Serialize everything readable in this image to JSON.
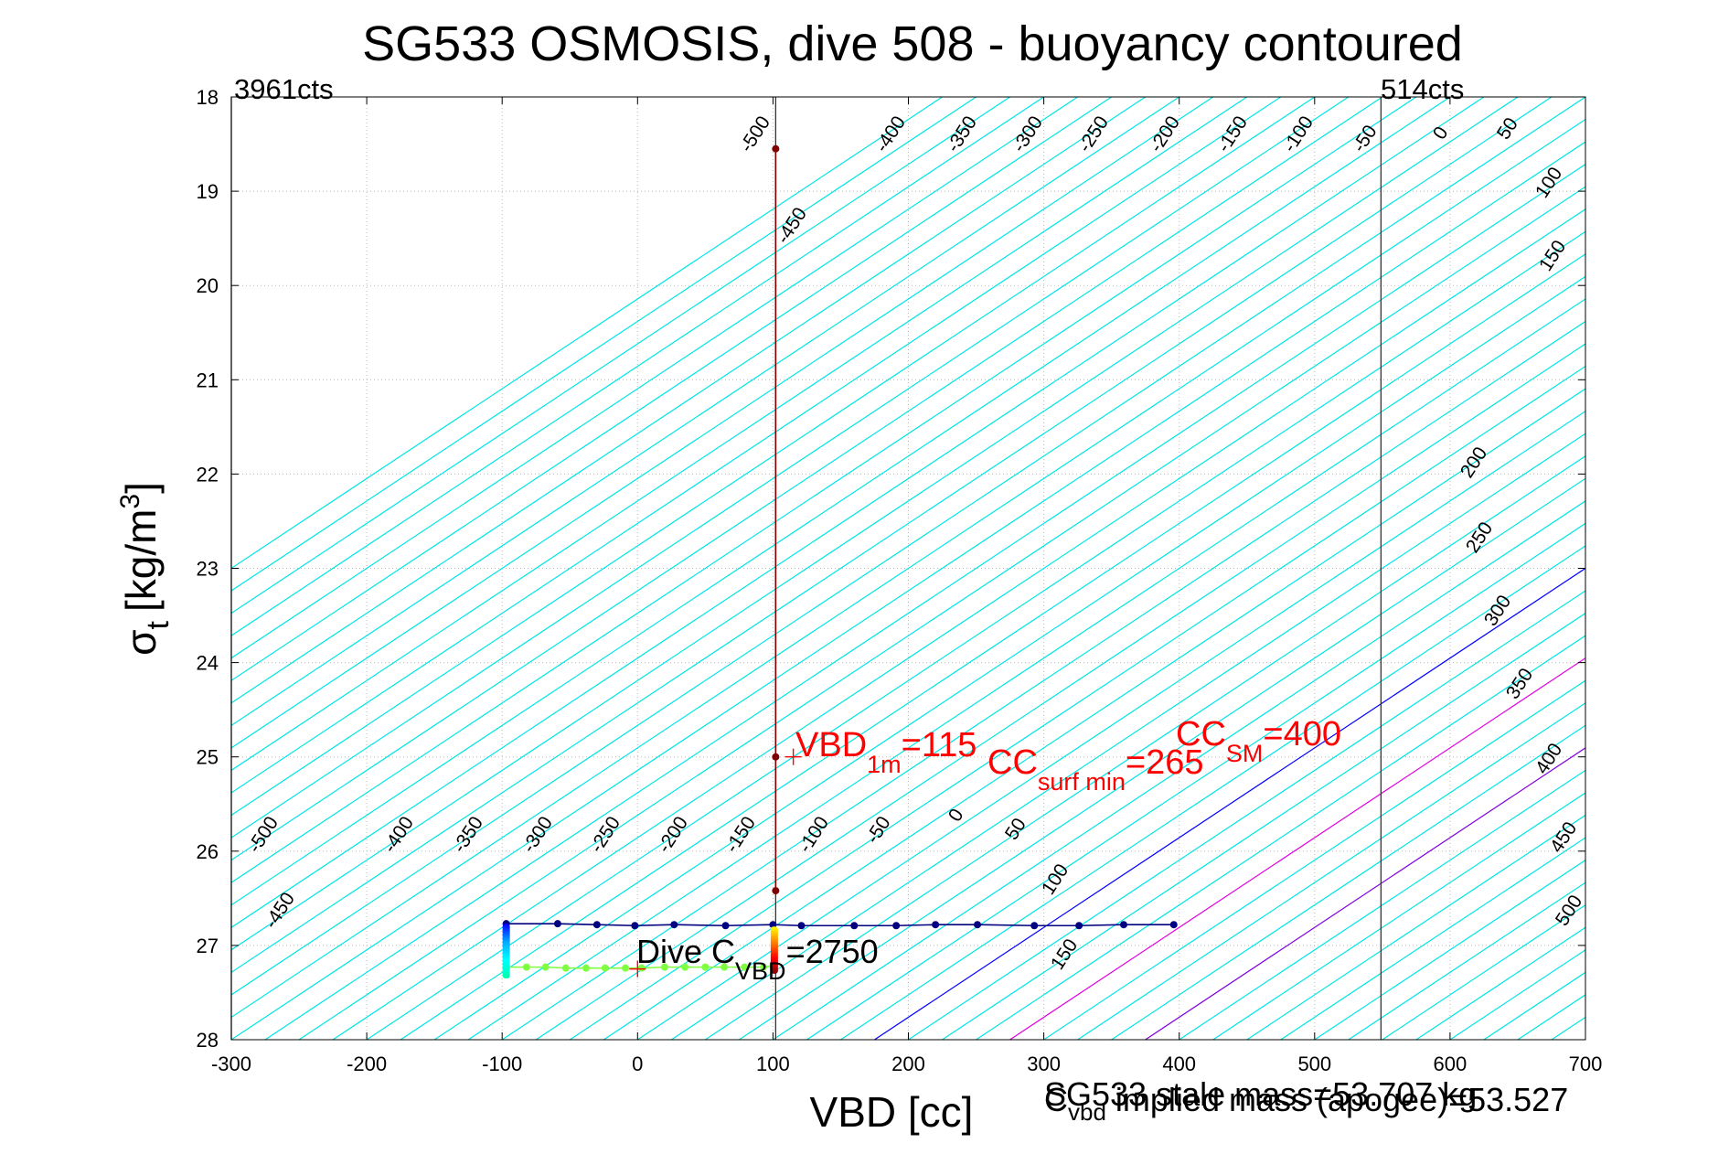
{
  "chart_data": {
    "type": "line",
    "title": "SG533 OSMOSIS, dive 508 - buoyancy contoured",
    "xlabel": "VBD [cc]",
    "ylabel": "σ_t [kg/m³]",
    "ylabel_symbol": "σ",
    "ylabel_sub": "t",
    "ylabel_unit": "[kg/m",
    "ylabel_sup": "3",
    "ylabel_close": "]",
    "xlim": [
      -300,
      700
    ],
    "ylim": [
      18,
      28
    ],
    "y_reversed": true,
    "grid": true,
    "x_ticks": [
      "-300",
      "-200",
      "-100",
      "0",
      "100",
      "200",
      "300",
      "400",
      "500",
      "600",
      "700"
    ],
    "y_ticks": [
      "18",
      "19",
      "20",
      "21",
      "22",
      "23",
      "24",
      "25",
      "26",
      "27",
      "28"
    ],
    "contour_spacing_cc": 25,
    "contour_colors": {
      "default": "#00e5e5",
      "zero": "#0000ff",
      "highlight_100": "#e000e0",
      "highlight_200": "#8000e0"
    },
    "contour_labels_top": [
      "-500",
      "-450",
      "-400",
      "-350",
      "-300",
      "-250",
      "-200",
      "-150",
      "-100",
      "-50",
      "0",
      "50",
      "100",
      "150",
      "200",
      "250",
      "300",
      "350",
      "400",
      "450",
      "500"
    ],
    "contour_labels_bottom": [
      "-500",
      "-450",
      "-400",
      "-350",
      "-300",
      "-250",
      "-200",
      "-150",
      "-100",
      "-50",
      "0",
      "50",
      "100",
      "150"
    ],
    "vertical_lines": [
      {
        "label": "3961cts",
        "x": -300
      },
      {
        "label": "",
        "x": 102
      },
      {
        "label": "514cts",
        "x": 549
      }
    ],
    "series": [
      {
        "color": "#000080",
        "x": [
          -97,
          -59,
          -30,
          -2,
          27,
          65,
          100,
          121,
          160,
          191,
          220,
          251,
          293,
          326,
          359,
          396
        ],
        "y": [
          26.77,
          26.77,
          26.78,
          26.79,
          26.78,
          26.79,
          26.78,
          26.79,
          26.79,
          26.79,
          26.78,
          26.78,
          26.79,
          26.79,
          26.78,
          26.78
        ]
      },
      {
        "color": "#80ff40",
        "x": [
          -97,
          -82,
          -68,
          -53,
          -38,
          -24,
          -9,
          3,
          20,
          35,
          50,
          64,
          79,
          93,
          100
        ],
        "y": [
          27.23,
          27.23,
          27.23,
          27.24,
          27.24,
          27.24,
          27.24,
          27.24,
          27.23,
          27.23,
          27.23,
          27.23,
          27.23,
          27.23,
          27.22
        ]
      },
      {
        "color": "#800000",
        "x": [
          102,
          102,
          102
        ],
        "y": [
          18.55,
          25.0,
          26.42
        ]
      }
    ],
    "colorbar_segments": [
      {
        "x": -97,
        "y_top": 26.77,
        "y_bottom": 27.35,
        "colors": [
          "#0000ff",
          "#00aaff",
          "#00ffff",
          "#00ffaa"
        ]
      },
      {
        "x": 101,
        "y_top": 26.8,
        "y_bottom": 27.3,
        "colors": [
          "#ffff00",
          "#ff8000",
          "#ff0000",
          "#800000"
        ]
      }
    ],
    "markers": [
      {
        "x": 115,
        "y": 25.0,
        "color": "#ff0000"
      },
      {
        "x": 0,
        "y": 27.25,
        "color": "#ff0000"
      }
    ],
    "annotations": {
      "vbd_1m": {
        "main": "VBD",
        "sub": "1m",
        "tail": "=115"
      },
      "cc_surf": {
        "main": "CC",
        "sub": "surf min",
        "tail": "=265"
      },
      "cc_sm": {
        "main": "CC",
        "sub": "SM",
        "tail": "=400"
      },
      "dive_c": {
        "main": "Dive C",
        "sub": "VBD",
        "tail": "=2750"
      }
    },
    "mass_line1": "SG533 stale mass=53.707 kg",
    "mass_line2_main": "C",
    "mass_line2_sub": "vbd",
    "mass_line2_tail": " implied mass (apogee)=53.527"
  }
}
